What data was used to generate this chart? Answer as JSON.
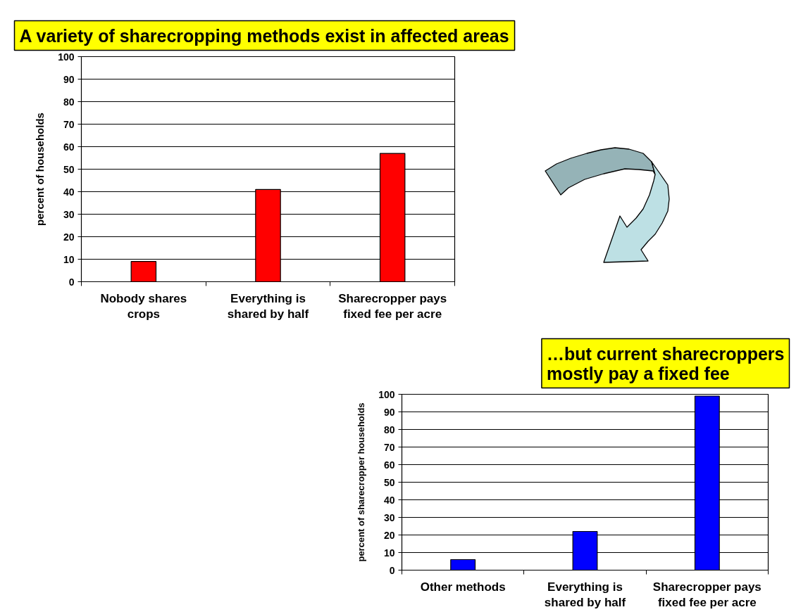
{
  "chart_data": [
    {
      "type": "bar",
      "title": "A variety of sharecropping methods exist in affected areas",
      "ylabel": "percent of households",
      "categories": [
        "Nobody shares crops",
        "Everything is shared by half",
        "Sharecropper pays fixed fee per acre"
      ],
      "values": [
        9,
        41,
        57
      ],
      "color": "#ff0000",
      "ylim": [
        0,
        100
      ],
      "yticks": [
        0,
        10,
        20,
        30,
        40,
        50,
        60,
        70,
        80,
        90,
        100
      ],
      "grid": "y"
    },
    {
      "type": "bar",
      "title": "…but current sharecroppers mostly pay a fixed fee",
      "ylabel": "percent of sharecropper households",
      "categories": [
        "Other methods",
        "Everything is shared by half",
        "Sharecropper pays fixed fee per acre"
      ],
      "values": [
        6,
        22,
        99
      ],
      "color": "#0000ff",
      "ylim": [
        0,
        100
      ],
      "yticks": [
        0,
        10,
        20,
        30,
        40,
        50,
        60,
        70,
        80,
        90,
        100
      ],
      "grid": "y"
    }
  ]
}
